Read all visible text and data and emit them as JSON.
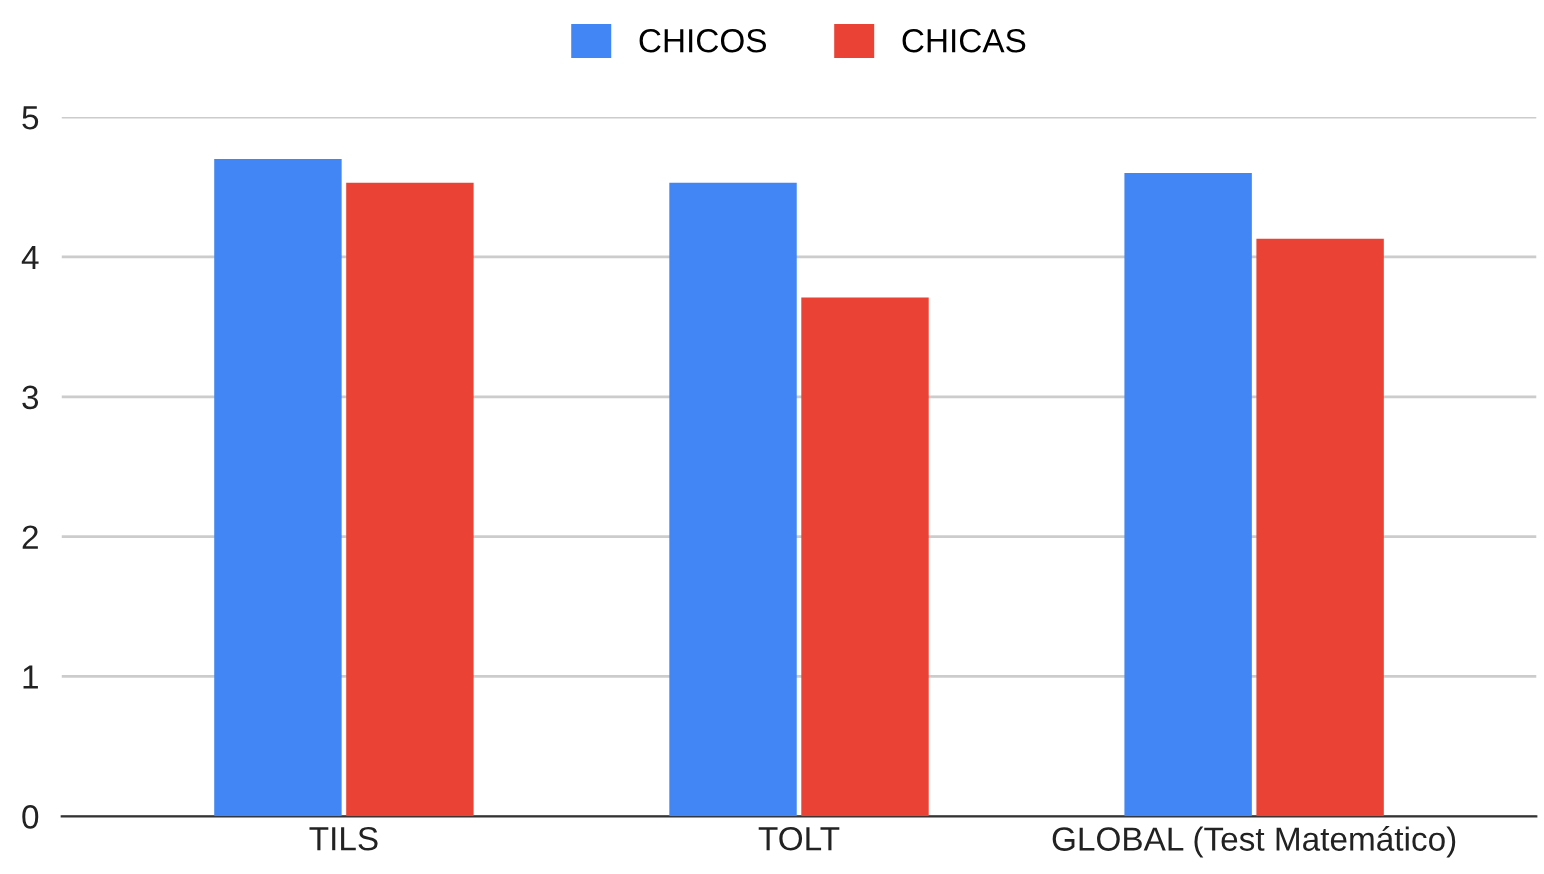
{
  "chart_data": {
    "type": "bar",
    "categories": [
      "TILS",
      "TOLT",
      "GLOBAL (Test Matemático)"
    ],
    "series": [
      {
        "name": "CHICOS",
        "color": "#4285f4",
        "values": [
          4.7,
          4.53,
          4.6
        ]
      },
      {
        "name": "CHICAS",
        "color": "#ea4335",
        "values": [
          4.53,
          3.71,
          4.13
        ]
      }
    ],
    "ylim": [
      0,
      5
    ],
    "yticks": [
      0,
      1,
      2,
      3,
      4,
      5
    ],
    "grid": "y",
    "legend": "top"
  }
}
